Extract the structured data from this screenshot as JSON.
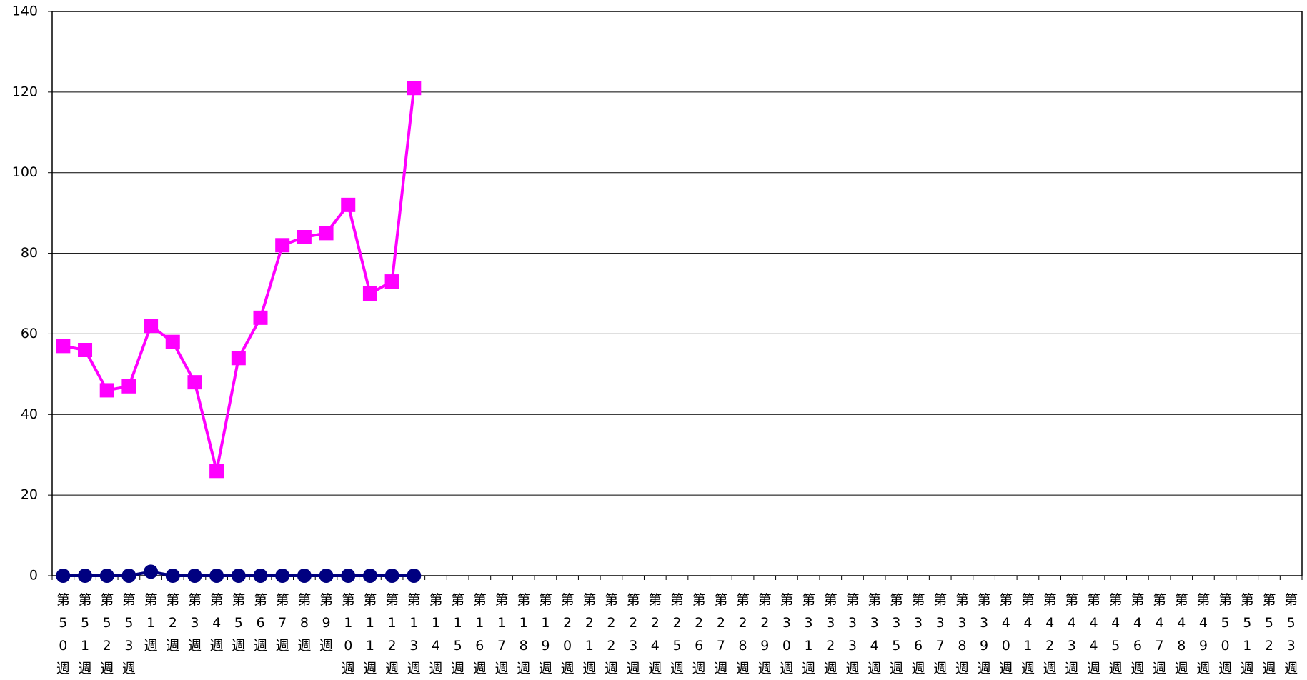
{
  "chart_data": {
    "type": "line",
    "categories": [
      "第50週",
      "第51週",
      "第52週",
      "第53週",
      "第1週",
      "第2週",
      "第3週",
      "第4週",
      "第5週",
      "第6週",
      "第7週",
      "第8週",
      "第9週",
      "第10週",
      "第11週",
      "第12週",
      "第13週",
      "第14週",
      "第15週",
      "第16週",
      "第17週",
      "第18週",
      "第19週",
      "第20週",
      "第21週",
      "第22週",
      "第23週",
      "第24週",
      "第25週",
      "第26週",
      "第27週",
      "第28週",
      "第29週",
      "第30週",
      "第31週",
      "第32週",
      "第33週",
      "第34週",
      "第35週",
      "第36週",
      "第37週",
      "第38週",
      "第39週",
      "第40週",
      "第41週",
      "第42週",
      "第43週",
      "第44週",
      "第45週",
      "第46週",
      "第47週",
      "第48週",
      "第49週",
      "第50週",
      "第51週",
      "第52週",
      "第53週"
    ],
    "series": [
      {
        "color": "#ff00ff",
        "marker": "square",
        "values": [
          57,
          56,
          46,
          47,
          62,
          58,
          48,
          26,
          54,
          64,
          82,
          84,
          85,
          92,
          70,
          73,
          121,
          null,
          null,
          null,
          null,
          null,
          null,
          null,
          null,
          null,
          null,
          null,
          null,
          null,
          null,
          null,
          null,
          null,
          null,
          null,
          null,
          null,
          null,
          null,
          null,
          null,
          null,
          null,
          null,
          null,
          null,
          null,
          null,
          null,
          null,
          null,
          null,
          null,
          null,
          null,
          null
        ]
      },
      {
        "color": "#000080",
        "marker": "circle",
        "values": [
          0,
          0,
          0,
          0,
          1,
          0,
          0,
          0,
          0,
          0,
          0,
          0,
          0,
          0,
          0,
          0,
          0,
          null,
          null,
          null,
          null,
          null,
          null,
          null,
          null,
          null,
          null,
          null,
          null,
          null,
          null,
          null,
          null,
          null,
          null,
          null,
          null,
          null,
          null,
          null,
          null,
          null,
          null,
          null,
          null,
          null,
          null,
          null,
          null,
          null,
          null,
          null,
          null,
          null,
          null,
          null,
          null
        ]
      }
    ],
    "ylim": [
      0,
      140
    ],
    "yticks": [
      0,
      20,
      40,
      60,
      80,
      100,
      120,
      140
    ],
    "grid": true
  }
}
